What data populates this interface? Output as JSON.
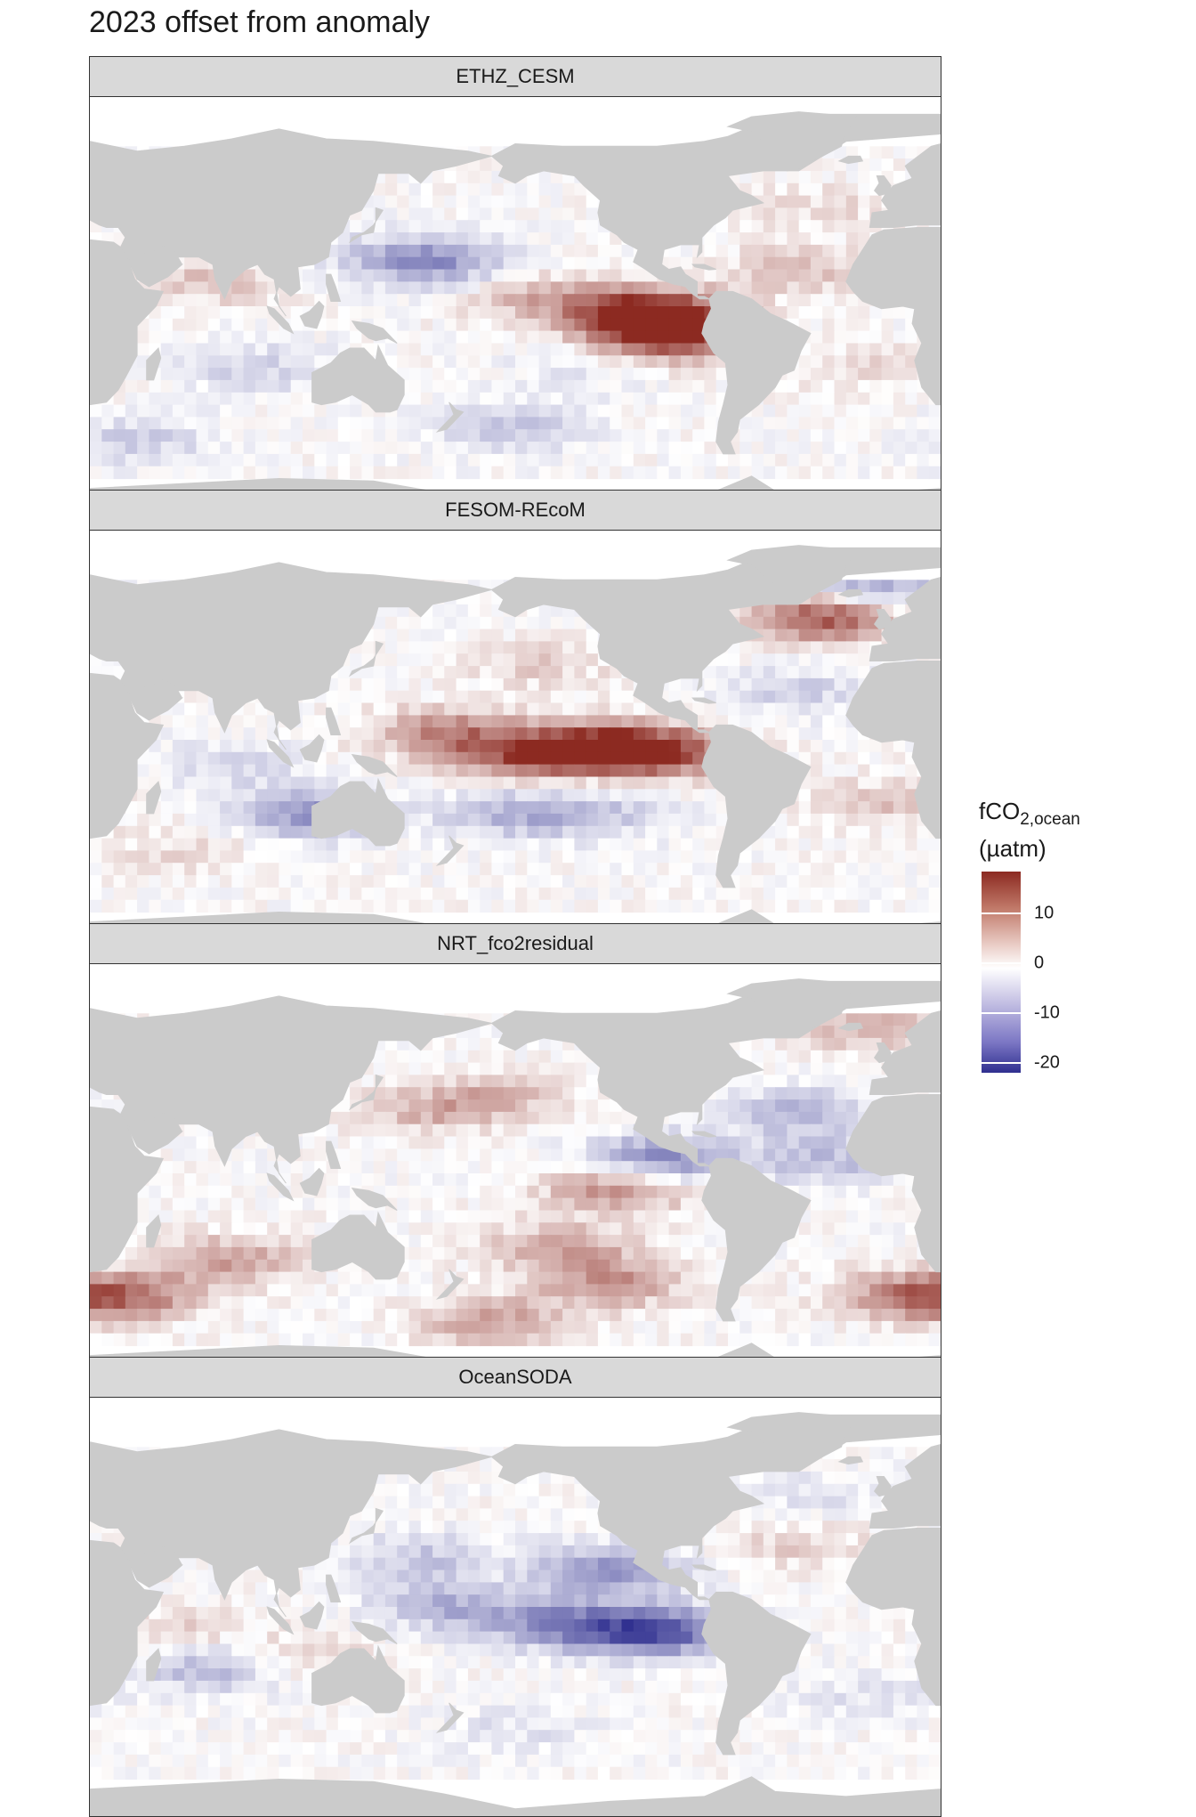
{
  "title": "2023 offset from anomaly",
  "panels": [
    {
      "name": "ETHZ_CESM",
      "pattern": [
        {
          "lon": -100,
          "lat": 2,
          "v": 18
        },
        {
          "lon": -95,
          "lat": -8,
          "v": 16
        },
        {
          "lon": -130,
          "lat": 5,
          "v": 6
        },
        {
          "lon": -160,
          "lat": 10,
          "v": 4
        },
        {
          "lon": 170,
          "lat": 22,
          "v": -8
        },
        {
          "lon": 150,
          "lat": 25,
          "v": -6
        },
        {
          "lon": -40,
          "lat": 20,
          "v": 5
        },
        {
          "lon": -30,
          "lat": 45,
          "v": 3
        },
        {
          "lon": 70,
          "lat": 15,
          "v": 5
        },
        {
          "lon": 90,
          "lat": -20,
          "v": -5
        },
        {
          "lon": -160,
          "lat": -45,
          "v": -6
        },
        {
          "lon": 40,
          "lat": -50,
          "v": -5
        },
        {
          "lon": -130,
          "lat": -20,
          "v": -3
        },
        {
          "lon": -10,
          "lat": -20,
          "v": 3
        }
      ]
    },
    {
      "name": "FESOM-REcoM",
      "pattern": [
        {
          "lon": -130,
          "lat": 2,
          "v": 15
        },
        {
          "lon": -100,
          "lat": 0,
          "v": 16
        },
        {
          "lon": 170,
          "lat": 8,
          "v": 10
        },
        {
          "lon": -160,
          "lat": -2,
          "v": 10
        },
        {
          "lon": -30,
          "lat": 55,
          "v": 15
        },
        {
          "lon": -10,
          "lat": 68,
          "v": -10
        },
        {
          "lon": -160,
          "lat": -25,
          "v": -8
        },
        {
          "lon": -120,
          "lat": -25,
          "v": -5
        },
        {
          "lon": 115,
          "lat": -25,
          "v": -12
        },
        {
          "lon": 80,
          "lat": -5,
          "v": -4
        },
        {
          "lon": -40,
          "lat": 25,
          "v": -5
        },
        {
          "lon": 0,
          "lat": -20,
          "v": 5
        },
        {
          "lon": -150,
          "lat": 35,
          "v": 4
        },
        {
          "lon": 60,
          "lat": -40,
          "v": 3
        }
      ]
    },
    {
      "name": "NRT_fco2residual",
      "pattern": [
        {
          "lon": -100,
          "lat": 10,
          "v": -14
        },
        {
          "lon": -115,
          "lat": 0,
          "v": 12
        },
        {
          "lon": -140,
          "lat": -25,
          "v": 8
        },
        {
          "lon": -120,
          "lat": -40,
          "v": 9
        },
        {
          "lon": 80,
          "lat": -30,
          "v": 8
        },
        {
          "lon": 40,
          "lat": -45,
          "v": 8
        },
        {
          "lon": 10,
          "lat": -45,
          "v": 12
        },
        {
          "lon": -40,
          "lat": 30,
          "v": -8
        },
        {
          "lon": -30,
          "lat": 10,
          "v": -7
        },
        {
          "lon": -170,
          "lat": 35,
          "v": 6
        },
        {
          "lon": 160,
          "lat": 30,
          "v": 5
        },
        {
          "lon": -10,
          "lat": 65,
          "v": 7
        },
        {
          "lon": -170,
          "lat": -55,
          "v": 8
        }
      ]
    },
    {
      "name": "OceanSODA",
      "pattern": [
        {
          "lon": -100,
          "lat": -5,
          "v": -18
        },
        {
          "lon": -140,
          "lat": -2,
          "v": -12
        },
        {
          "lon": -120,
          "lat": 20,
          "v": -12
        },
        {
          "lon": 170,
          "lat": 5,
          "v": -8
        },
        {
          "lon": 160,
          "lat": 25,
          "v": -6
        },
        {
          "lon": 70,
          "lat": -20,
          "v": -8
        },
        {
          "lon": 55,
          "lat": -5,
          "v": 4
        },
        {
          "lon": 110,
          "lat": -15,
          "v": 4
        },
        {
          "lon": -40,
          "lat": 30,
          "v": 4
        },
        {
          "lon": -30,
          "lat": 50,
          "v": -3
        },
        {
          "lon": -160,
          "lat": -45,
          "v": -3
        },
        {
          "lon": -10,
          "lat": -30,
          "v": -3
        }
      ]
    }
  ],
  "legend": {
    "title_main": "fCO",
    "title_sub": "2,ocean",
    "unit": "(µatm)",
    "ticks": [
      {
        "label": "10",
        "value": 10
      },
      {
        "label": "0",
        "value": 0
      },
      {
        "label": "-10",
        "value": -10
      },
      {
        "label": "-20",
        "value": -20
      }
    ],
    "range": [
      -22,
      18
    ]
  },
  "colors": {
    "land": "#cbcbcb",
    "ocean_na": "#ffffff",
    "high": "#8c2a21",
    "mid": "#ffffff",
    "low": "#2f2f8f"
  }
}
